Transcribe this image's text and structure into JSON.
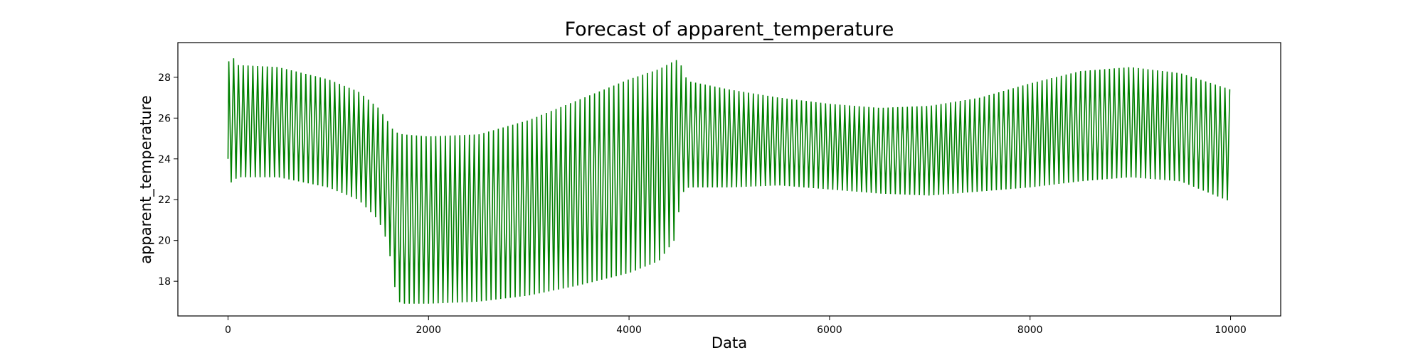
{
  "chart_data": {
    "type": "line",
    "title": "Forecast of apparent_temperature",
    "xlabel": "Data",
    "ylabel": "apparent_temperature",
    "xlim": [
      -500,
      10500
    ],
    "ylim": [
      16.3,
      29.7
    ],
    "x_ticks": [
      0,
      2000,
      4000,
      6000,
      8000,
      10000
    ],
    "x_tick_labels": [
      "0",
      "2000",
      "4000",
      "6000",
      "8000",
      "10000"
    ],
    "y_ticks": [
      18,
      20,
      22,
      24,
      26,
      28
    ],
    "y_tick_labels": [
      "18",
      "20",
      "22",
      "24",
      "26",
      "28"
    ],
    "grid": false,
    "series": [
      {
        "color": "#008000",
        "oscillation_period": 48,
        "start": {
          "x": 0,
          "y": 24.0
        },
        "envelope_x": [
          0,
          20,
          100,
          500,
          1000,
          1300,
          1500,
          1600,
          1650,
          1700,
          1750,
          2000,
          2500,
          3000,
          3500,
          4000,
          4300,
          4450,
          4500,
          4550,
          4600,
          5000,
          5500,
          6000,
          6500,
          7000,
          7500,
          8000,
          8500,
          9000,
          9500,
          10000
        ],
        "envelope_upper": [
          28.5,
          29.2,
          28.6,
          28.5,
          27.9,
          27.3,
          26.5,
          25.8,
          25.4,
          25.25,
          25.2,
          25.1,
          25.2,
          25.9,
          26.9,
          27.9,
          28.4,
          28.8,
          28.9,
          28.1,
          27.8,
          27.4,
          27.0,
          26.7,
          26.5,
          26.6,
          27.0,
          27.7,
          28.3,
          28.5,
          28.2,
          27.4
        ],
        "envelope_lower": [
          23.2,
          22.8,
          23.1,
          23.1,
          22.6,
          22.0,
          21.0,
          19.8,
          18.0,
          17.0,
          16.9,
          16.9,
          17.0,
          17.3,
          17.8,
          18.4,
          19.0,
          20.0,
          21.5,
          22.5,
          22.6,
          22.6,
          22.7,
          22.5,
          22.3,
          22.2,
          22.4,
          22.6,
          22.9,
          23.1,
          22.9,
          21.9
        ]
      }
    ]
  }
}
